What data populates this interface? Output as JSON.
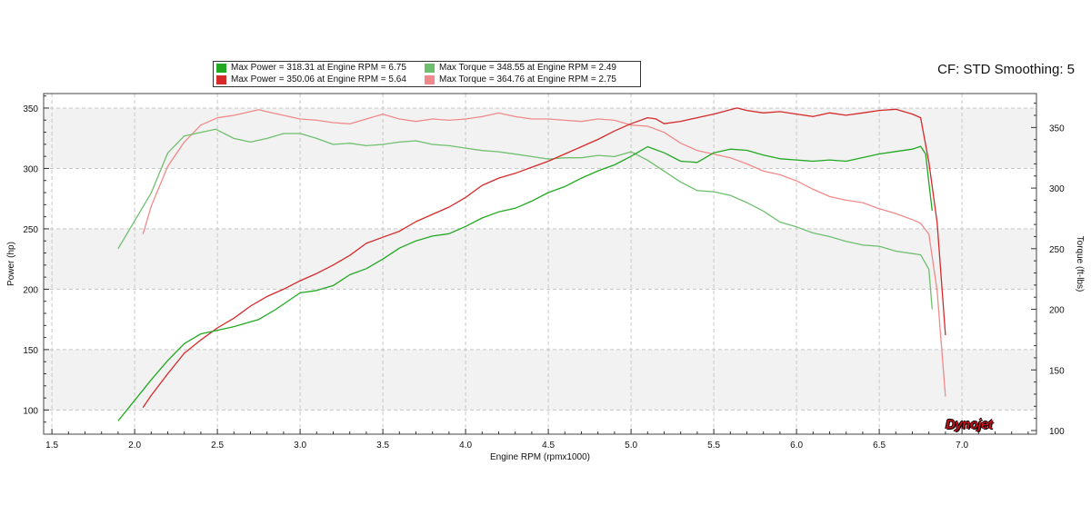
{
  "header": {
    "cf_label": "CF: STD Smoothing: 5"
  },
  "legend": {
    "items": [
      {
        "text": "Max Power = 318.31 at Engine RPM = 6.75",
        "color": "#22a822"
      },
      {
        "text": "Max Torque = 348.55 at Engine RPM = 2.49",
        "color": "#6fbf6f"
      },
      {
        "text": "Max Power = 350.06 at Engine RPM = 5.64",
        "color": "#d42a2a"
      },
      {
        "text": "Max Torque = 364.76 at Engine RPM = 2.75",
        "color": "#f08a8a"
      }
    ]
  },
  "logo": {
    "text": "Dynojet"
  },
  "chart_data": {
    "type": "line",
    "xlabel": "Engine RPM (rpmx1000)",
    "ylabel": "Power (hp)",
    "y2label": "Torque (ft-lbs)",
    "xlim": [
      1.45,
      7.45
    ],
    "ylim": [
      80,
      362
    ],
    "y2lim": [
      97,
      378
    ],
    "x_ticks": [
      "1.5",
      "2.0",
      "2.5",
      "3.0",
      "3.5",
      "4.0",
      "4.5",
      "5.0",
      "5.5",
      "6.0",
      "6.5",
      "7.0"
    ],
    "y_ticks": [
      "100",
      "150",
      "200",
      "250",
      "300",
      "350"
    ],
    "y2_ticks": [
      "100",
      "150",
      "200",
      "250",
      "300",
      "350"
    ],
    "grid": true,
    "legend_position": "top-left",
    "series": [
      {
        "name": "Max Power = 318.31 at Engine RPM = 6.75",
        "axis": "left",
        "color": "#22a822",
        "points": [
          [
            1.9,
            91
          ],
          [
            2.0,
            108
          ],
          [
            2.1,
            125
          ],
          [
            2.2,
            141
          ],
          [
            2.3,
            155
          ],
          [
            2.4,
            163
          ],
          [
            2.5,
            166
          ],
          [
            2.6,
            169
          ],
          [
            2.75,
            175
          ],
          [
            2.85,
            183
          ],
          [
            3.0,
            197
          ],
          [
            3.1,
            199
          ],
          [
            3.2,
            203
          ],
          [
            3.3,
            212
          ],
          [
            3.4,
            217
          ],
          [
            3.5,
            225
          ],
          [
            3.6,
            234
          ],
          [
            3.7,
            240
          ],
          [
            3.8,
            244
          ],
          [
            3.9,
            246
          ],
          [
            4.0,
            252
          ],
          [
            4.1,
            259
          ],
          [
            4.2,
            264
          ],
          [
            4.3,
            267
          ],
          [
            4.4,
            273
          ],
          [
            4.5,
            280
          ],
          [
            4.6,
            285
          ],
          [
            4.7,
            292
          ],
          [
            4.8,
            298
          ],
          [
            4.9,
            303
          ],
          [
            5.0,
            310
          ],
          [
            5.05,
            314
          ],
          [
            5.1,
            318
          ],
          [
            5.2,
            313
          ],
          [
            5.3,
            306
          ],
          [
            5.4,
            305
          ],
          [
            5.5,
            313
          ],
          [
            5.6,
            316
          ],
          [
            5.7,
            315
          ],
          [
            5.8,
            311
          ],
          [
            5.9,
            308
          ],
          [
            6.0,
            307
          ],
          [
            6.1,
            306
          ],
          [
            6.2,
            307
          ],
          [
            6.3,
            306
          ],
          [
            6.4,
            309
          ],
          [
            6.5,
            312
          ],
          [
            6.6,
            314
          ],
          [
            6.7,
            316
          ],
          [
            6.75,
            318.31
          ],
          [
            6.78,
            312
          ],
          [
            6.8,
            288
          ],
          [
            6.82,
            265
          ]
        ]
      },
      {
        "name": "Max Torque = 348.55 at Engine RPM = 2.49",
        "axis": "right",
        "color": "#6fbf6f",
        "points": [
          [
            1.9,
            250
          ],
          [
            2.0,
            273
          ],
          [
            2.1,
            296
          ],
          [
            2.2,
            329
          ],
          [
            2.3,
            343
          ],
          [
            2.4,
            346
          ],
          [
            2.49,
            348.55
          ],
          [
            2.6,
            341
          ],
          [
            2.7,
            338
          ],
          [
            2.8,
            341
          ],
          [
            2.9,
            345
          ],
          [
            3.0,
            345
          ],
          [
            3.1,
            341
          ],
          [
            3.2,
            336
          ],
          [
            3.3,
            337
          ],
          [
            3.4,
            335
          ],
          [
            3.5,
            336
          ],
          [
            3.6,
            338
          ],
          [
            3.7,
            339
          ],
          [
            3.8,
            336
          ],
          [
            3.9,
            335
          ],
          [
            4.0,
            333
          ],
          [
            4.1,
            331
          ],
          [
            4.2,
            330
          ],
          [
            4.3,
            328
          ],
          [
            4.4,
            326
          ],
          [
            4.5,
            324
          ],
          [
            4.6,
            325
          ],
          [
            4.7,
            325
          ],
          [
            4.8,
            327
          ],
          [
            4.9,
            326
          ],
          [
            5.0,
            330
          ],
          [
            5.1,
            323
          ],
          [
            5.2,
            314
          ],
          [
            5.3,
            305
          ],
          [
            5.4,
            298
          ],
          [
            5.5,
            297
          ],
          [
            5.6,
            294
          ],
          [
            5.7,
            288
          ],
          [
            5.8,
            281
          ],
          [
            5.9,
            272
          ],
          [
            6.0,
            268
          ],
          [
            6.1,
            263
          ],
          [
            6.2,
            260
          ],
          [
            6.3,
            256
          ],
          [
            6.4,
            253
          ],
          [
            6.5,
            252
          ],
          [
            6.6,
            248
          ],
          [
            6.7,
            246
          ],
          [
            6.75,
            245
          ],
          [
            6.8,
            233
          ],
          [
            6.82,
            200
          ]
        ]
      },
      {
        "name": "Max Power = 350.06 at Engine RPM = 5.64",
        "axis": "left",
        "color": "#d42a2a",
        "points": [
          [
            2.05,
            102
          ],
          [
            2.1,
            112
          ],
          [
            2.2,
            130
          ],
          [
            2.3,
            147
          ],
          [
            2.4,
            158
          ],
          [
            2.5,
            168
          ],
          [
            2.6,
            176
          ],
          [
            2.7,
            186
          ],
          [
            2.8,
            194
          ],
          [
            2.9,
            200
          ],
          [
            3.0,
            207
          ],
          [
            3.1,
            213
          ],
          [
            3.2,
            220
          ],
          [
            3.3,
            228
          ],
          [
            3.4,
            238
          ],
          [
            3.5,
            243
          ],
          [
            3.6,
            248
          ],
          [
            3.7,
            256
          ],
          [
            3.8,
            262
          ],
          [
            3.9,
            268
          ],
          [
            4.0,
            276
          ],
          [
            4.1,
            286
          ],
          [
            4.2,
            292
          ],
          [
            4.3,
            296
          ],
          [
            4.4,
            301
          ],
          [
            4.5,
            306
          ],
          [
            4.6,
            312
          ],
          [
            4.7,
            318
          ],
          [
            4.8,
            324
          ],
          [
            4.9,
            331
          ],
          [
            5.0,
            337
          ],
          [
            5.1,
            342
          ],
          [
            5.15,
            341
          ],
          [
            5.2,
            337
          ],
          [
            5.3,
            339
          ],
          [
            5.4,
            342
          ],
          [
            5.5,
            345
          ],
          [
            5.64,
            350.06
          ],
          [
            5.7,
            348
          ],
          [
            5.8,
            346
          ],
          [
            5.9,
            347
          ],
          [
            6.0,
            345
          ],
          [
            6.1,
            343
          ],
          [
            6.2,
            346
          ],
          [
            6.3,
            344
          ],
          [
            6.4,
            346
          ],
          [
            6.5,
            348
          ],
          [
            6.6,
            349
          ],
          [
            6.7,
            345
          ],
          [
            6.75,
            342
          ],
          [
            6.8,
            305
          ],
          [
            6.85,
            255
          ],
          [
            6.9,
            162
          ]
        ]
      },
      {
        "name": "Max Torque = 364.76 at Engine RPM = 2.75",
        "axis": "right",
        "color": "#f08a8a",
        "points": [
          [
            2.05,
            262
          ],
          [
            2.1,
            285
          ],
          [
            2.2,
            318
          ],
          [
            2.3,
            338
          ],
          [
            2.4,
            352
          ],
          [
            2.5,
            358
          ],
          [
            2.6,
            360
          ],
          [
            2.75,
            364.76
          ],
          [
            2.8,
            363
          ],
          [
            2.9,
            360
          ],
          [
            3.0,
            357
          ],
          [
            3.1,
            356
          ],
          [
            3.2,
            354
          ],
          [
            3.3,
            353
          ],
          [
            3.4,
            357
          ],
          [
            3.5,
            361
          ],
          [
            3.6,
            357
          ],
          [
            3.7,
            355
          ],
          [
            3.8,
            357
          ],
          [
            3.9,
            356
          ],
          [
            4.0,
            357
          ],
          [
            4.1,
            359
          ],
          [
            4.2,
            362
          ],
          [
            4.3,
            359
          ],
          [
            4.4,
            357
          ],
          [
            4.5,
            357
          ],
          [
            4.6,
            356
          ],
          [
            4.7,
            355
          ],
          [
            4.8,
            357
          ],
          [
            4.9,
            356
          ],
          [
            5.0,
            352
          ],
          [
            5.1,
            351
          ],
          [
            5.2,
            346
          ],
          [
            5.3,
            337
          ],
          [
            5.4,
            331
          ],
          [
            5.5,
            328
          ],
          [
            5.6,
            325
          ],
          [
            5.7,
            320
          ],
          [
            5.8,
            314
          ],
          [
            5.9,
            311
          ],
          [
            6.0,
            306
          ],
          [
            6.1,
            299
          ],
          [
            6.2,
            293
          ],
          [
            6.3,
            290
          ],
          [
            6.4,
            288
          ],
          [
            6.5,
            283
          ],
          [
            6.6,
            279
          ],
          [
            6.7,
            274
          ],
          [
            6.75,
            271
          ],
          [
            6.8,
            262
          ],
          [
            6.85,
            215
          ],
          [
            6.9,
            128
          ]
        ]
      }
    ]
  }
}
